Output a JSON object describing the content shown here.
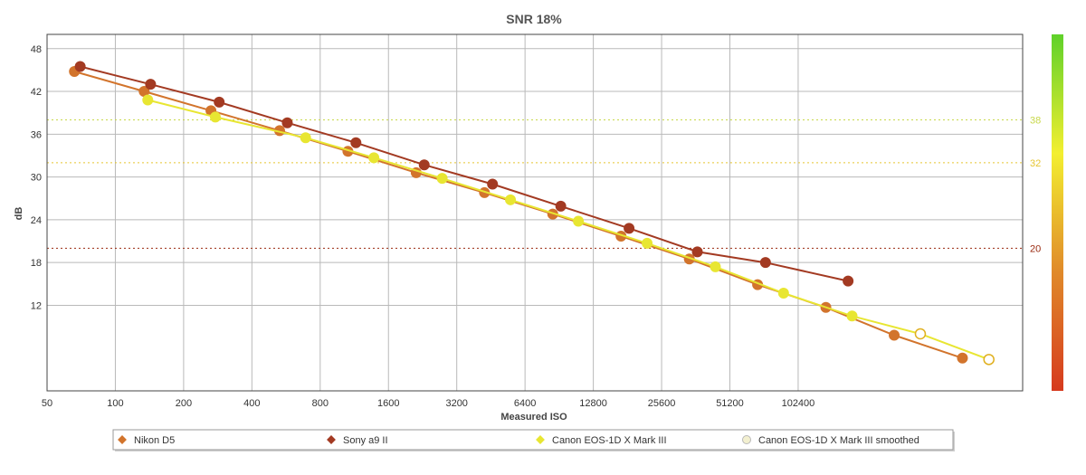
{
  "chart_data": {
    "type": "line",
    "title": "SNR 18%",
    "xlabel": "Measured ISO",
    "ylabel": "dB",
    "x_scale": "log2",
    "xlim": [
      50,
      1000000
    ],
    "ylim": [
      0,
      50
    ],
    "x_ticks": [
      50,
      100,
      200,
      400,
      800,
      1600,
      3200,
      6400,
      12800,
      25600,
      51200,
      102400
    ],
    "x_tick_labels": [
      "50",
      "100",
      "200",
      "400",
      "800",
      "1600",
      "3200",
      "6400",
      "12800",
      "25600",
      "51200",
      "102400"
    ],
    "y_ticks": [
      12,
      18,
      24,
      30,
      36,
      42,
      48
    ],
    "y_tick_labels": [
      "12",
      "18",
      "24",
      "30",
      "36",
      "42",
      "48"
    ],
    "grid": true,
    "reference_lines": [
      {
        "value": 38,
        "label": "38",
        "color": "#c8d84a"
      },
      {
        "value": 32,
        "label": "32",
        "color": "#e6c530"
      },
      {
        "value": 20,
        "label": "20",
        "color": "#9a2a10"
      }
    ],
    "color_scale": {
      "colors": [
        "#d63a1e",
        "#e08a2a",
        "#f3ef30",
        "#5fd12a"
      ]
    },
    "legend_position": "bottom",
    "series": [
      {
        "name": "Nikon D5",
        "color": "#d2742c",
        "points": [
          [
            66,
            44.8
          ],
          [
            134,
            42.0
          ],
          [
            264,
            39.3
          ],
          [
            530,
            36.5
          ],
          [
            1060,
            33.6
          ],
          [
            2120,
            30.6
          ],
          [
            4240,
            27.8
          ],
          [
            8480,
            24.8
          ],
          [
            16960,
            21.7
          ],
          [
            33920,
            18.5
          ],
          [
            67840,
            14.9
          ],
          [
            135680,
            11.7
          ],
          [
            271360,
            7.8
          ],
          [
            542720,
            4.6
          ]
        ]
      },
      {
        "name": "Sony a9 II",
        "color": "#a33a22",
        "points": [
          [
            70,
            45.5
          ],
          [
            143,
            43.0
          ],
          [
            287,
            40.5
          ],
          [
            573,
            37.6
          ],
          [
            1150,
            34.8
          ],
          [
            2300,
            31.7
          ],
          [
            4600,
            29.0
          ],
          [
            9200,
            25.9
          ],
          [
            18400,
            22.8
          ],
          [
            36800,
            19.5
          ],
          [
            73500,
            18.0
          ],
          [
            170000,
            15.4
          ]
        ]
      },
      {
        "name": "Canon EOS-1D X Mark III",
        "color": "#e8e632",
        "points": [
          [
            139,
            40.8
          ],
          [
            276,
            38.4
          ],
          [
            690,
            35.5
          ],
          [
            1380,
            32.7
          ],
          [
            2760,
            29.8
          ],
          [
            5520,
            26.8
          ],
          [
            11000,
            23.8
          ],
          [
            22100,
            20.7
          ],
          [
            44200,
            17.4
          ],
          [
            88300,
            13.7
          ],
          [
            177000,
            10.5
          ]
        ]
      },
      {
        "name": "Canon EOS-1D X Mark III smoothed",
        "color": "#e8e632",
        "hollow": true,
        "points": [
          [
            354000,
            8.0
          ],
          [
            710000,
            4.4
          ]
        ]
      }
    ]
  }
}
